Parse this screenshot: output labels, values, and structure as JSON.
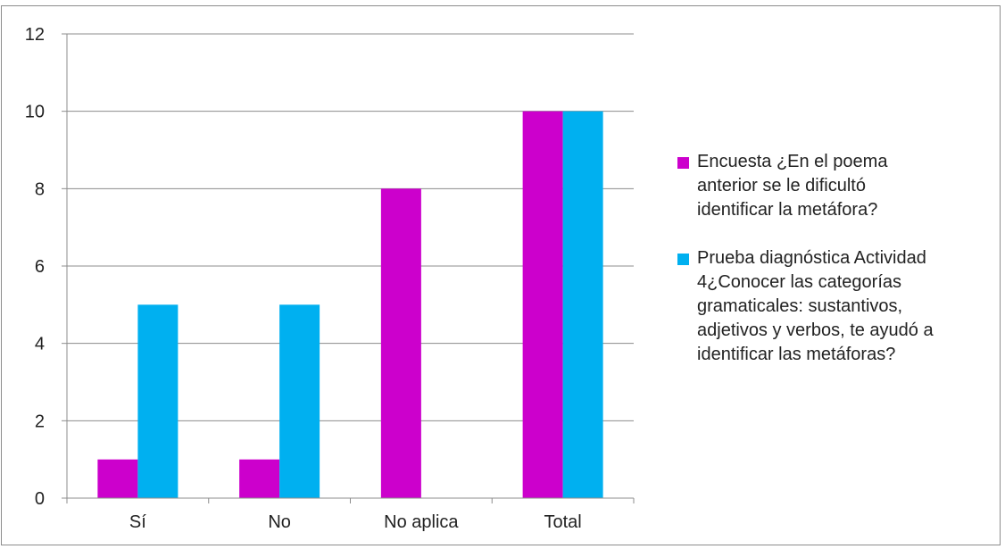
{
  "chart_data": {
    "type": "bar",
    "categories": [
      "Sí",
      "No",
      "No aplica",
      "Total"
    ],
    "series": [
      {
        "name": "Encuesta ¿En el poema anterior se le dificultó identificar la metáfora?",
        "color": "#CC00CC",
        "values": [
          1,
          1,
          8,
          10
        ]
      },
      {
        "name": "Prueba diagnóstica Actividad 4¿Conocer las categorías gramaticales: sustantivos, adjetivos y verbos, te ayudó a identificar las metáforas?",
        "color": "#00B0F0",
        "values": [
          5,
          5,
          0,
          10
        ]
      }
    ],
    "y_ticks": [
      "0",
      "2",
      "4",
      "6",
      "8",
      "10",
      "12"
    ],
    "ylim": [
      0,
      12
    ],
    "grid": true,
    "legend_position": "right"
  }
}
